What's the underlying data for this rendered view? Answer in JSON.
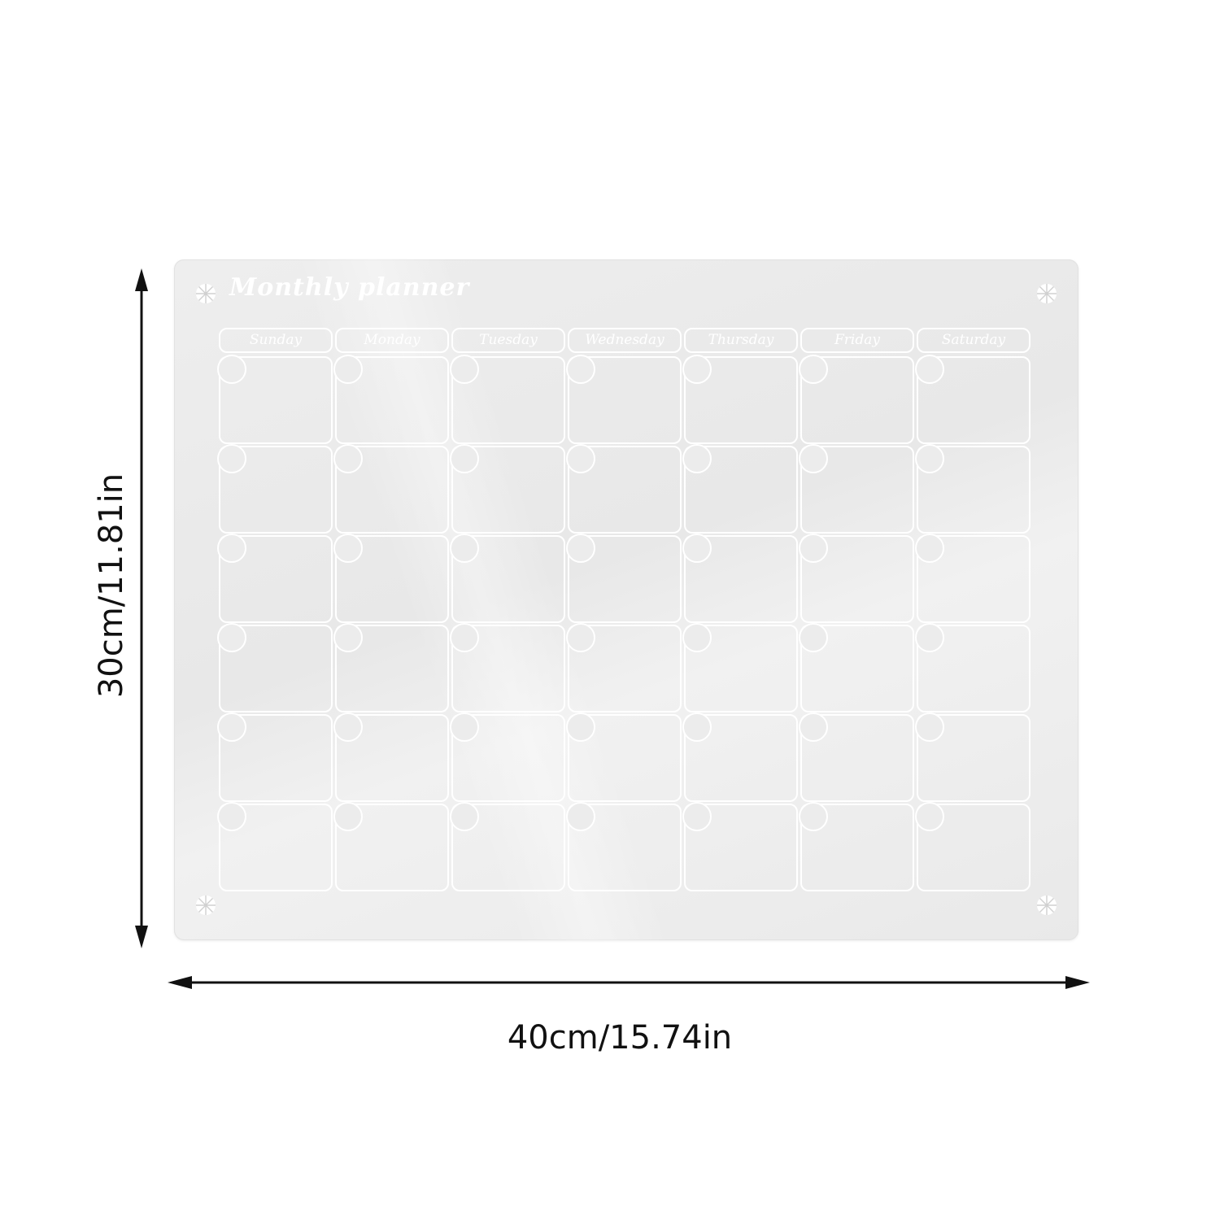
{
  "product": {
    "title": "Monthly planner",
    "days": [
      "Sunday",
      "Monday",
      "Tuesday",
      "Wednesday",
      "Thursday",
      "Friday",
      "Saturday"
    ],
    "rows": 6,
    "board_color": "#eaeaea",
    "line_color": "#ffffff"
  },
  "dimensions": {
    "height_label": "30cm/11.81in",
    "width_label": "40cm/15.74in"
  }
}
